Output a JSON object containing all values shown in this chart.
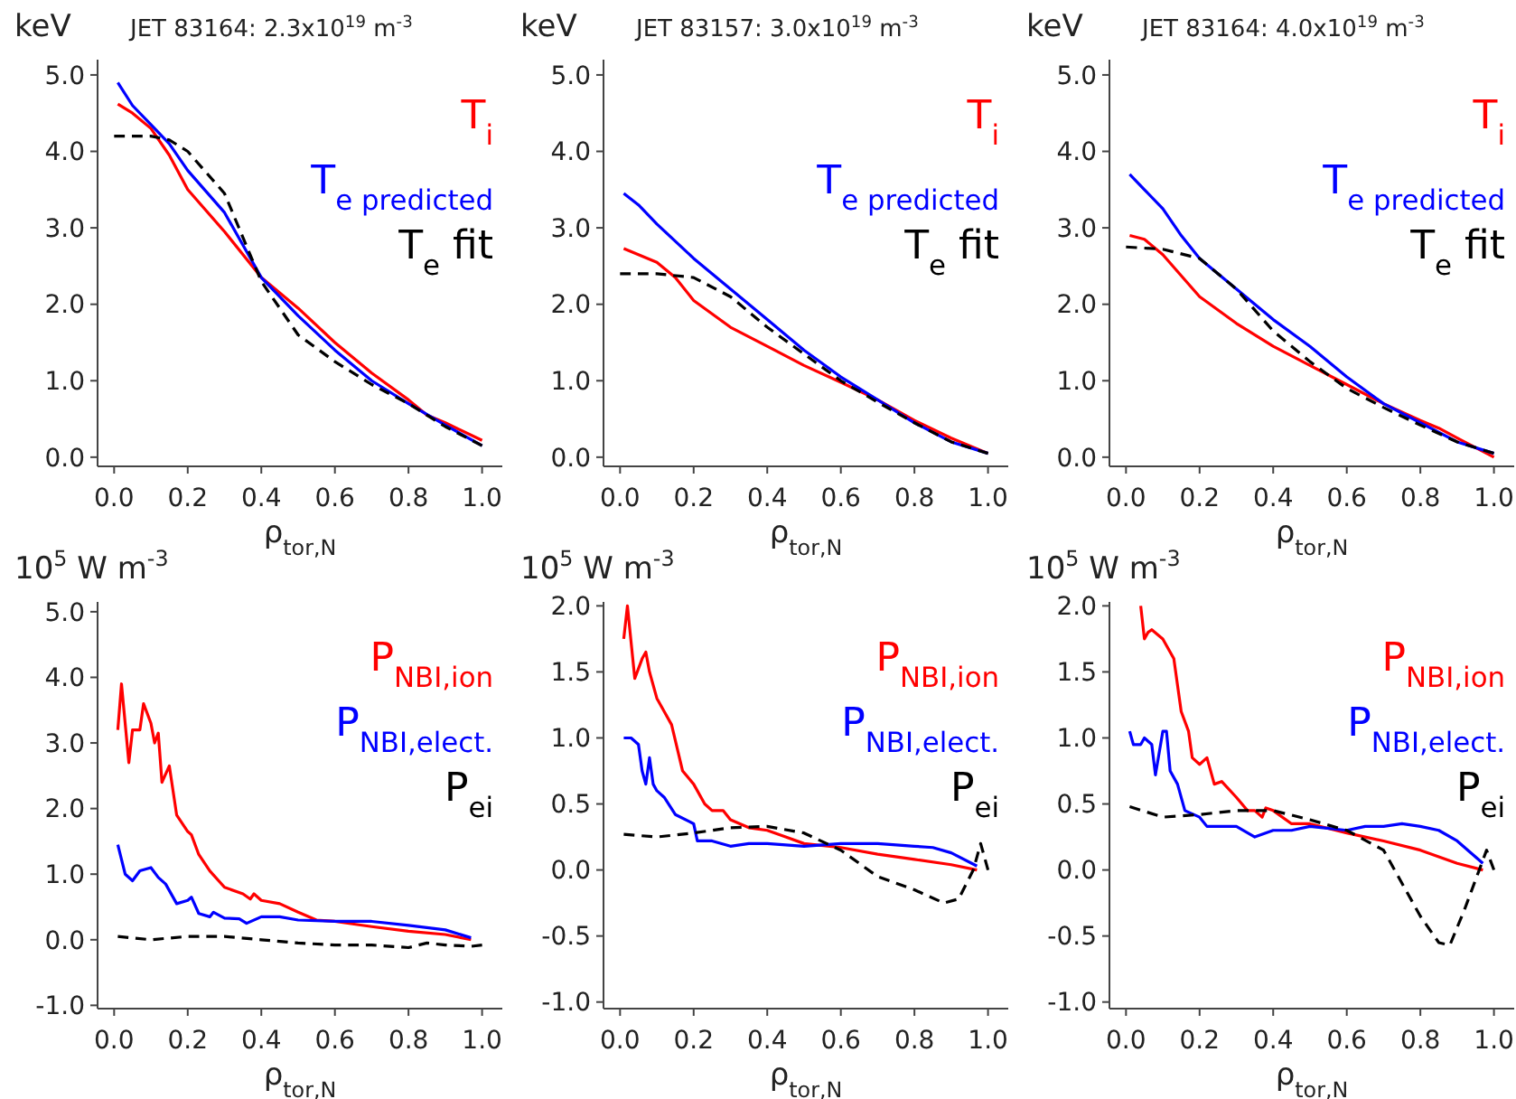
{
  "chart_data": [
    {
      "type": "line",
      "title": "JET 83164: 2.3x10$^{19}$ m$^{-3}$",
      "ylabel": "keV",
      "xlabel": "ρ$_{tor,N}$",
      "legend": "top right",
      "xlim": [
        -0.045,
        1.055
      ],
      "ylim": [
        -0.12,
        5.2
      ],
      "xticks": [
        {
          "value": 0,
          "label": "0.0"
        },
        {
          "value": 0.2,
          "label": "0.2"
        },
        {
          "value": 0.4,
          "label": "0.4"
        },
        {
          "value": 0.6,
          "label": "0.6"
        },
        {
          "value": 0.8,
          "label": "0.8"
        },
        {
          "value": 1,
          "label": "1.0"
        }
      ],
      "yticks": [
        {
          "value": 0,
          "label": "0.0"
        },
        {
          "value": 1,
          "label": "1.0"
        },
        {
          "value": 2,
          "label": "2.0"
        },
        {
          "value": 3,
          "label": "3.0"
        },
        {
          "value": 4,
          "label": "4.0"
        },
        {
          "value": 5,
          "label": "5.0"
        }
      ],
      "series": [
        {
          "name": "T$_{i}$",
          "color": "#ff0000",
          "line_style": "solid",
          "x": [
            0.01,
            0.05,
            0.1,
            0.15,
            0.2,
            0.3,
            0.4,
            0.5,
            0.6,
            0.7,
            0.8,
            0.85,
            0.9,
            1.0
          ],
          "values": [
            4.62,
            4.5,
            4.3,
            3.95,
            3.5,
            2.95,
            2.35,
            1.95,
            1.5,
            1.1,
            0.75,
            0.55,
            0.45,
            0.22
          ]
        },
        {
          "name": "T$_{e predicted}$",
          "color": "#0000ff",
          "line_style": "solid",
          "x": [
            0.01,
            0.05,
            0.1,
            0.15,
            0.2,
            0.3,
            0.4,
            0.5,
            0.6,
            0.7,
            0.8,
            0.9,
            1.0
          ],
          "values": [
            4.9,
            4.6,
            4.35,
            4.1,
            3.75,
            3.2,
            2.35,
            1.85,
            1.4,
            1.0,
            0.7,
            0.42,
            0.15
          ]
        },
        {
          "name": "T$_{e}$ fit",
          "color": "#000000",
          "line_style": "dashed",
          "x": [
            0.0,
            0.1,
            0.15,
            0.2,
            0.3,
            0.4,
            0.5,
            0.6,
            0.7,
            0.8,
            0.9,
            1.0
          ],
          "values": [
            4.2,
            4.2,
            4.15,
            4.0,
            3.45,
            2.3,
            1.6,
            1.25,
            0.95,
            0.7,
            0.4,
            0.15
          ]
        }
      ]
    },
    {
      "type": "line",
      "title": "JET 83157: 3.0x10$^{19}$ m$^{-3}$",
      "ylabel": "keV",
      "xlabel": "ρ$_{tor,N}$",
      "legend": "top right",
      "xlim": [
        -0.045,
        1.055
      ],
      "ylim": [
        -0.12,
        5.2
      ],
      "xticks": [
        {
          "value": 0,
          "label": "0.0"
        },
        {
          "value": 0.2,
          "label": "0.2"
        },
        {
          "value": 0.4,
          "label": "0.4"
        },
        {
          "value": 0.6,
          "label": "0.6"
        },
        {
          "value": 0.8,
          "label": "0.8"
        },
        {
          "value": 1,
          "label": "1.0"
        }
      ],
      "yticks": [
        {
          "value": 0,
          "label": "0.0"
        },
        {
          "value": 1,
          "label": "1.0"
        },
        {
          "value": 2,
          "label": "2.0"
        },
        {
          "value": 3,
          "label": "3.0"
        },
        {
          "value": 4,
          "label": "4.0"
        },
        {
          "value": 5,
          "label": "5.0"
        }
      ],
      "series": [
        {
          "name": "T$_{i}$",
          "color": "#ff0000",
          "line_style": "solid",
          "x": [
            0.01,
            0.1,
            0.15,
            0.2,
            0.3,
            0.4,
            0.5,
            0.6,
            0.7,
            0.8,
            0.9,
            1.0
          ],
          "values": [
            2.73,
            2.55,
            2.35,
            2.05,
            1.7,
            1.45,
            1.2,
            0.98,
            0.75,
            0.48,
            0.25,
            0.05
          ]
        },
        {
          "name": "T$_{e predicted}$",
          "color": "#0000ff",
          "line_style": "solid",
          "x": [
            0.01,
            0.05,
            0.1,
            0.2,
            0.3,
            0.4,
            0.5,
            0.6,
            0.7,
            0.8,
            0.9,
            1.0
          ],
          "values": [
            3.45,
            3.3,
            3.05,
            2.6,
            2.2,
            1.8,
            1.4,
            1.05,
            0.75,
            0.45,
            0.2,
            0.05
          ]
        },
        {
          "name": "T$_{e}$ fit",
          "color": "#000000",
          "line_style": "dashed",
          "x": [
            0.0,
            0.1,
            0.2,
            0.3,
            0.4,
            0.5,
            0.6,
            0.7,
            0.8,
            0.9,
            1.0
          ],
          "values": [
            2.4,
            2.4,
            2.35,
            2.1,
            1.7,
            1.35,
            1.0,
            0.72,
            0.45,
            0.2,
            0.05
          ]
        }
      ]
    },
    {
      "type": "line",
      "title": "JET 83164: 4.0x10$^{19}$ m$^{-3}$",
      "ylabel": "keV",
      "xlabel": "ρ$_{tor,N}$",
      "legend": "top right",
      "xlim": [
        -0.045,
        1.055
      ],
      "ylim": [
        -0.12,
        5.2
      ],
      "xticks": [
        {
          "value": 0,
          "label": "0.0"
        },
        {
          "value": 0.2,
          "label": "0.2"
        },
        {
          "value": 0.4,
          "label": "0.4"
        },
        {
          "value": 0.6,
          "label": "0.6"
        },
        {
          "value": 0.8,
          "label": "0.8"
        },
        {
          "value": 1,
          "label": "1.0"
        }
      ],
      "yticks": [
        {
          "value": 0,
          "label": "0.0"
        },
        {
          "value": 1,
          "label": "1.0"
        },
        {
          "value": 2,
          "label": "2.0"
        },
        {
          "value": 3,
          "label": "3.0"
        },
        {
          "value": 4,
          "label": "4.0"
        },
        {
          "value": 5,
          "label": "5.0"
        }
      ],
      "series": [
        {
          "name": "T$_{i}$",
          "color": "#ff0000",
          "line_style": "solid",
          "x": [
            0.01,
            0.05,
            0.1,
            0.2,
            0.3,
            0.4,
            0.5,
            0.6,
            0.7,
            0.8,
            0.85,
            0.9,
            1.0
          ],
          "values": [
            2.9,
            2.85,
            2.65,
            2.1,
            1.75,
            1.45,
            1.2,
            0.95,
            0.7,
            0.48,
            0.38,
            0.25,
            0.0
          ]
        },
        {
          "name": "T$_{e predicted}$",
          "color": "#0000ff",
          "line_style": "solid",
          "x": [
            0.01,
            0.05,
            0.1,
            0.15,
            0.2,
            0.3,
            0.4,
            0.5,
            0.6,
            0.7,
            0.8,
            0.9,
            1.0
          ],
          "values": [
            3.7,
            3.5,
            3.25,
            2.9,
            2.6,
            2.2,
            1.8,
            1.45,
            1.05,
            0.7,
            0.45,
            0.2,
            0.05
          ]
        },
        {
          "name": "T$_{e}$ fit",
          "color": "#000000",
          "line_style": "dashed",
          "x": [
            0.0,
            0.1,
            0.2,
            0.3,
            0.4,
            0.5,
            0.6,
            0.7,
            0.8,
            0.9,
            1.0
          ],
          "values": [
            2.75,
            2.72,
            2.6,
            2.2,
            1.65,
            1.25,
            0.9,
            0.65,
            0.42,
            0.2,
            0.05
          ]
        }
      ]
    },
    {
      "type": "line",
      "ylabel": "10$^{5}$ W m$^{-3}$",
      "xlabel": "ρ$_{tor,N}$",
      "legend": "top right",
      "xlim": [
        -0.045,
        1.055
      ],
      "ylim": [
        -1.05,
        5.15
      ],
      "xticks": [
        {
          "value": 0,
          "label": "0.0"
        },
        {
          "value": 0.2,
          "label": "0.2"
        },
        {
          "value": 0.4,
          "label": "0.4"
        },
        {
          "value": 0.6,
          "label": "0.6"
        },
        {
          "value": 0.8,
          "label": "0.8"
        },
        {
          "value": 1,
          "label": "1.0"
        }
      ],
      "yticks": [
        {
          "value": -1,
          "label": "-1.0"
        },
        {
          "value": 0,
          "label": "0.0"
        },
        {
          "value": 1,
          "label": "1.0"
        },
        {
          "value": 2,
          "label": "2.0"
        },
        {
          "value": 3,
          "label": "3.0"
        },
        {
          "value": 4,
          "label": "4.0"
        },
        {
          "value": 5,
          "label": "5.0"
        }
      ],
      "series": [
        {
          "name": "P$_{NBI,ion}$",
          "color": "#ff0000",
          "line_style": "solid",
          "x": [
            0.01,
            0.02,
            0.04,
            0.05,
            0.07,
            0.08,
            0.1,
            0.11,
            0.12,
            0.13,
            0.15,
            0.17,
            0.2,
            0.21,
            0.23,
            0.26,
            0.3,
            0.35,
            0.37,
            0.38,
            0.4,
            0.45,
            0.5,
            0.55,
            0.6,
            0.7,
            0.8,
            0.9,
            0.97
          ],
          "values": [
            3.2,
            3.9,
            2.7,
            3.2,
            3.2,
            3.6,
            3.3,
            3.0,
            3.15,
            2.4,
            2.65,
            1.9,
            1.65,
            1.6,
            1.3,
            1.05,
            0.8,
            0.7,
            0.62,
            0.7,
            0.6,
            0.55,
            0.42,
            0.3,
            0.28,
            0.2,
            0.13,
            0.08,
            0.0
          ]
        },
        {
          "name": "P$_{NBI,elect.}$",
          "color": "#0000ff",
          "line_style": "solid",
          "x": [
            0.01,
            0.03,
            0.05,
            0.07,
            0.1,
            0.12,
            0.14,
            0.17,
            0.2,
            0.21,
            0.23,
            0.26,
            0.27,
            0.3,
            0.34,
            0.36,
            0.4,
            0.45,
            0.5,
            0.6,
            0.7,
            0.8,
            0.9,
            0.97
          ],
          "values": [
            1.45,
            1.0,
            0.9,
            1.05,
            1.1,
            0.95,
            0.85,
            0.55,
            0.6,
            0.65,
            0.4,
            0.35,
            0.42,
            0.33,
            0.32,
            0.25,
            0.35,
            0.35,
            0.3,
            0.28,
            0.28,
            0.22,
            0.15,
            0.03
          ]
        },
        {
          "name": "P$_{ei}$",
          "color": "#000000",
          "line_style": "dashed",
          "x": [
            0.01,
            0.1,
            0.2,
            0.3,
            0.4,
            0.5,
            0.6,
            0.7,
            0.8,
            0.85,
            0.9,
            0.97,
            1.0
          ],
          "values": [
            0.05,
            0.0,
            0.05,
            0.05,
            0.0,
            -0.05,
            -0.08,
            -0.08,
            -0.12,
            -0.05,
            -0.08,
            -0.1,
            -0.08
          ]
        }
      ]
    },
    {
      "type": "line",
      "ylabel": "10$^{5}$ W m$^{-3}$",
      "xlabel": "ρ$_{tor,N}$",
      "legend": "top right",
      "xlim": [
        -0.045,
        1.055
      ],
      "ylim": [
        -1.05,
        2.03
      ],
      "xticks": [
        {
          "value": 0,
          "label": "0.0"
        },
        {
          "value": 0.2,
          "label": "0.2"
        },
        {
          "value": 0.4,
          "label": "0.4"
        },
        {
          "value": 0.6,
          "label": "0.6"
        },
        {
          "value": 0.8,
          "label": "0.8"
        },
        {
          "value": 1,
          "label": "1.0"
        }
      ],
      "yticks": [
        {
          "value": -1,
          "label": "-1.0"
        },
        -0.5,
        {
          "value": 0,
          "label": "0.0"
        },
        0.5,
        {
          "value": 1,
          "label": "1.0"
        },
        1.5,
        {
          "value": 2,
          "label": "2.0"
        }
      ],
      "series": [
        {
          "name": "P$_{NBI,ion}$",
          "color": "#ff0000",
          "line_style": "solid",
          "x": [
            0.01,
            0.02,
            0.04,
            0.06,
            0.07,
            0.08,
            0.1,
            0.12,
            0.14,
            0.17,
            0.2,
            0.23,
            0.25,
            0.28,
            0.3,
            0.35,
            0.4,
            0.45,
            0.5,
            0.6,
            0.7,
            0.8,
            0.9,
            0.97
          ],
          "values": [
            1.75,
            2.0,
            1.45,
            1.6,
            1.65,
            1.5,
            1.3,
            1.2,
            1.1,
            0.75,
            0.65,
            0.5,
            0.45,
            0.45,
            0.38,
            0.32,
            0.3,
            0.25,
            0.2,
            0.17,
            0.12,
            0.08,
            0.04,
            0.0
          ]
        },
        {
          "name": "P$_{NBI,elect.}$",
          "color": "#0000ff",
          "line_style": "solid",
          "x": [
            0.01,
            0.03,
            0.05,
            0.06,
            0.07,
            0.08,
            0.09,
            0.1,
            0.12,
            0.15,
            0.2,
            0.21,
            0.25,
            0.3,
            0.35,
            0.4,
            0.5,
            0.6,
            0.7,
            0.8,
            0.85,
            0.9,
            0.97
          ],
          "values": [
            1.0,
            1.0,
            0.95,
            0.75,
            0.65,
            0.85,
            0.65,
            0.6,
            0.55,
            0.42,
            0.35,
            0.22,
            0.22,
            0.18,
            0.2,
            0.2,
            0.18,
            0.2,
            0.2,
            0.18,
            0.17,
            0.13,
            0.03
          ]
        },
        {
          "name": "P$_{ei}$",
          "color": "#000000",
          "line_style": "dashed",
          "x": [
            0.01,
            0.1,
            0.2,
            0.3,
            0.4,
            0.5,
            0.6,
            0.7,
            0.8,
            0.88,
            0.92,
            0.96,
            0.98,
            1.0
          ],
          "values": [
            0.27,
            0.25,
            0.28,
            0.32,
            0.33,
            0.28,
            0.15,
            -0.05,
            -0.15,
            -0.25,
            -0.22,
            0.0,
            0.2,
            0.0
          ]
        }
      ]
    },
    {
      "type": "line",
      "ylabel": "10$^{5}$ W m$^{-3}$",
      "xlabel": "ρ$_{tor,N}$",
      "legend": "top right",
      "xlim": [
        -0.045,
        1.055
      ],
      "ylim": [
        -1.05,
        2.03
      ],
      "xticks": [
        {
          "value": 0,
          "label": "0.0"
        },
        {
          "value": 0.2,
          "label": "0.2"
        },
        {
          "value": 0.4,
          "label": "0.4"
        },
        {
          "value": 0.6,
          "label": "0.6"
        },
        {
          "value": 0.8,
          "label": "0.8"
        },
        {
          "value": 1,
          "label": "1.0"
        }
      ],
      "yticks": [
        {
          "value": -1,
          "label": "-1.0"
        },
        -0.5,
        {
          "value": 0,
          "label": "0.0"
        },
        0.5,
        {
          "value": 1,
          "label": "1.0"
        },
        1.5,
        {
          "value": 2,
          "label": "2.0"
        }
      ],
      "series": [
        {
          "name": "P$_{NBI,ion}$",
          "color": "#ff0000",
          "line_style": "solid",
          "x": [
            0.04,
            0.05,
            0.06,
            0.07,
            0.1,
            0.12,
            0.13,
            0.15,
            0.17,
            0.18,
            0.2,
            0.22,
            0.24,
            0.26,
            0.3,
            0.33,
            0.35,
            0.37,
            0.38,
            0.4,
            0.45,
            0.5,
            0.6,
            0.7,
            0.8,
            0.9,
            0.97
          ],
          "values": [
            2.0,
            1.75,
            1.8,
            1.82,
            1.75,
            1.65,
            1.6,
            1.2,
            1.05,
            0.85,
            0.8,
            0.85,
            0.65,
            0.67,
            0.55,
            0.45,
            0.45,
            0.4,
            0.47,
            0.45,
            0.35,
            0.35,
            0.28,
            0.22,
            0.15,
            0.05,
            0.0
          ]
        },
        {
          "name": "P$_{NBI,elect.}$",
          "color": "#0000ff",
          "line_style": "solid",
          "x": [
            0.01,
            0.02,
            0.04,
            0.05,
            0.07,
            0.08,
            0.1,
            0.11,
            0.12,
            0.14,
            0.16,
            0.2,
            0.22,
            0.3,
            0.35,
            0.4,
            0.45,
            0.5,
            0.6,
            0.65,
            0.7,
            0.75,
            0.8,
            0.85,
            0.9,
            0.97
          ],
          "values": [
            1.05,
            0.95,
            0.95,
            1.0,
            0.95,
            0.72,
            1.05,
            1.05,
            0.75,
            0.65,
            0.45,
            0.4,
            0.33,
            0.33,
            0.25,
            0.3,
            0.3,
            0.33,
            0.3,
            0.33,
            0.33,
            0.35,
            0.33,
            0.3,
            0.22,
            0.05
          ]
        },
        {
          "name": "P$_{ei}$",
          "color": "#000000",
          "line_style": "dashed",
          "x": [
            0.01,
            0.1,
            0.2,
            0.3,
            0.4,
            0.5,
            0.6,
            0.7,
            0.75,
            0.8,
            0.85,
            0.88,
            0.92,
            0.96,
            0.98,
            1.0
          ],
          "values": [
            0.48,
            0.4,
            0.42,
            0.45,
            0.45,
            0.38,
            0.3,
            0.15,
            -0.1,
            -0.35,
            -0.55,
            -0.57,
            -0.3,
            0.0,
            0.15,
            0.0
          ]
        }
      ]
    }
  ]
}
